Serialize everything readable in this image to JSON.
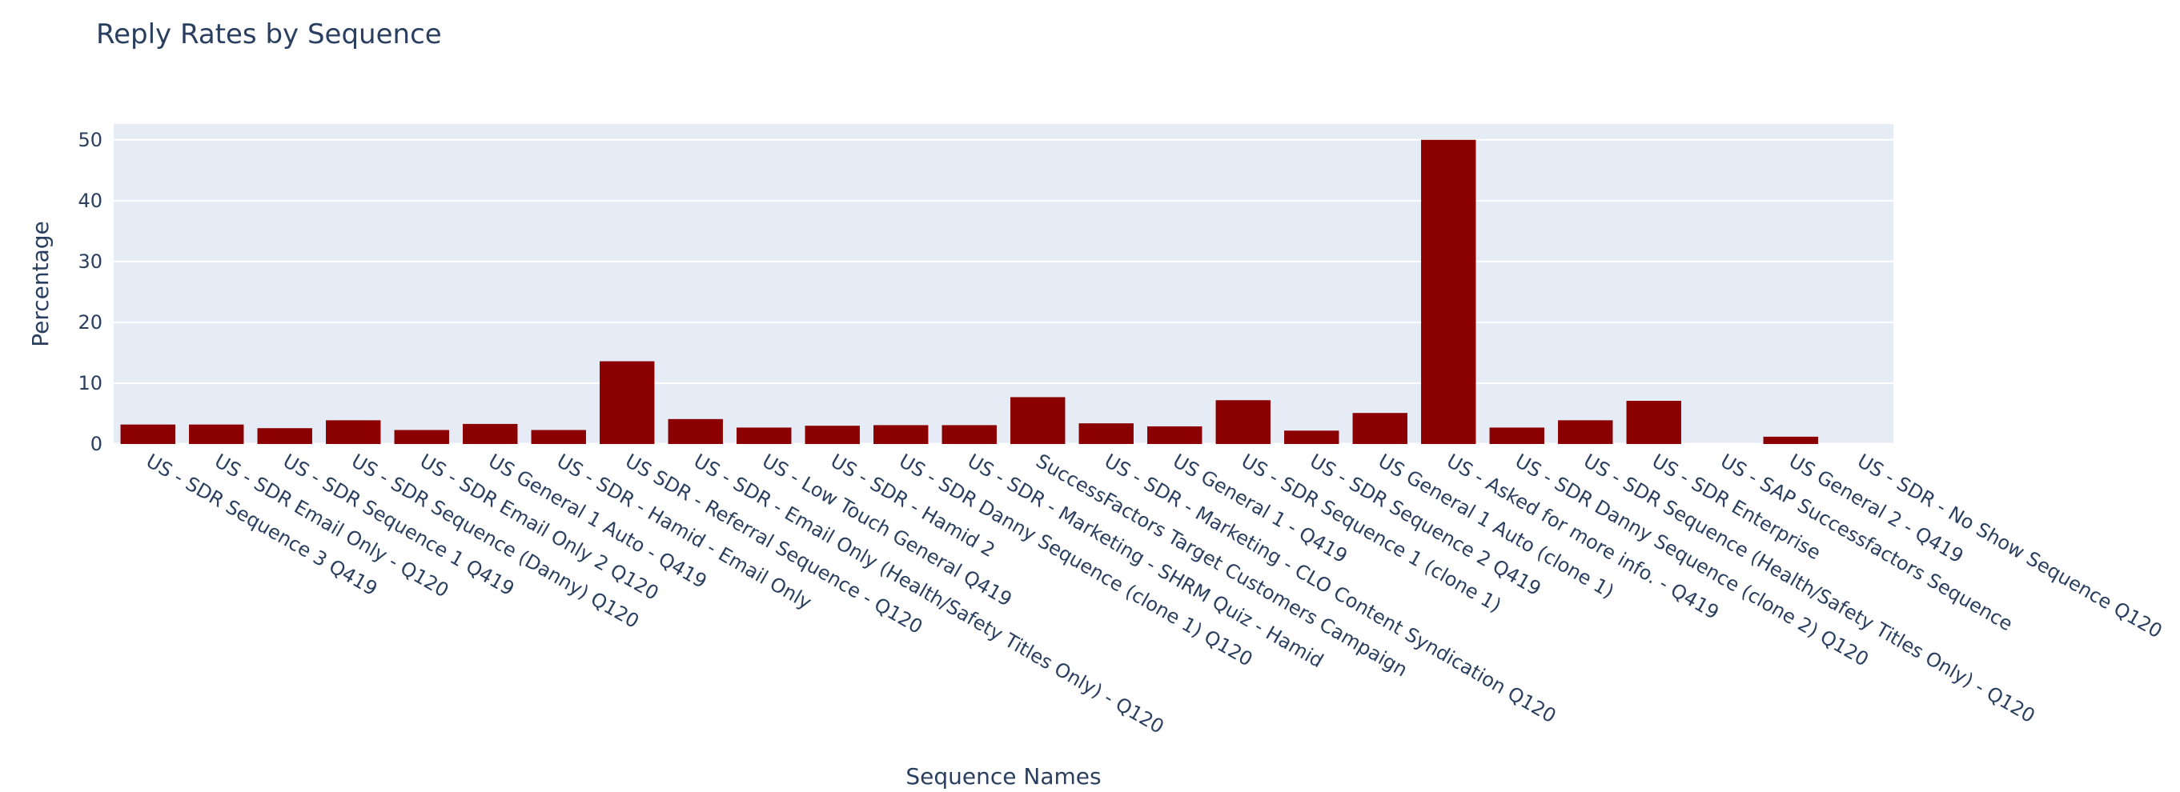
{
  "chart_data": {
    "type": "bar",
    "title": "Reply Rates by Sequence",
    "xlabel": "Sequence Names",
    "ylabel": "Percentage",
    "ylim": [
      0,
      52.6
    ],
    "yticks": [
      0,
      10,
      20,
      30,
      40,
      50
    ],
    "grid": true,
    "legend": "none",
    "bar_color": "#8b0000",
    "plot_bg": "#e5ecf6",
    "text_color": "#2a3f5f",
    "categories": [
      "US - SDR Sequence 3 Q419",
      "US - SDR Email Only  - Q120",
      "US - SDR Sequence 1 Q419",
      "US - SDR Sequence (Danny) Q120",
      "US - SDR Email Only 2 Q120",
      "US General 1 Auto - Q419",
      "US - SDR - Hamid - Email Only",
      "US SDR -  Referral Sequence - Q120",
      "US - SDR - Email Only (Health/Safety Titles Only) - Q120",
      "US - Low Touch General Q419",
      "US - SDR - Hamid 2",
      "US - SDR Danny Sequence (clone 1) Q120",
      "US - SDR - Marketing - SHRM Quiz - Hamid",
      "SuccessFactors Target Customers Campaign",
      "US - SDR - Marketing - CLO Content Syndication Q120",
      "US General 1 -  Q419",
      "US - SDR Sequence 1 (clone 1)",
      "US - SDR Sequence 2 Q419",
      "US General 1 Auto (clone 1)",
      "US - Asked for more info. - Q419",
      "US - SDR Danny Sequence (clone 2) Q120",
      "US - SDR Sequence (Health/Safety Titles Only) - Q120",
      "US - SDR Enterprise",
      "US - SAP Successfactors Sequence",
      "US General 2 - Q419",
      "US - SDR - No Show Sequence Q120"
    ],
    "values": [
      3.2,
      3.2,
      2.6,
      3.9,
      2.3,
      3.3,
      2.3,
      13.6,
      4.1,
      2.7,
      3.0,
      3.1,
      3.1,
      7.7,
      3.4,
      2.9,
      7.2,
      2.2,
      5.1,
      50.0,
      2.7,
      3.9,
      7.1,
      0.0,
      1.2,
      0.0
    ]
  }
}
